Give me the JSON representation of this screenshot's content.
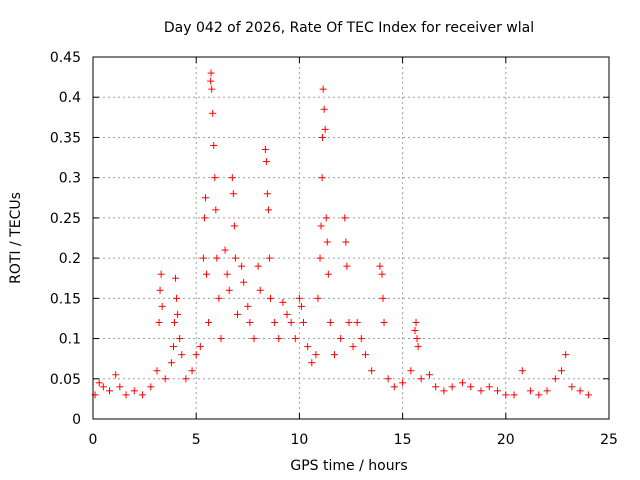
{
  "chart_data": {
    "type": "scatter",
    "title": "Day 042 of 2026, Rate Of TEC Index for receiver wlal",
    "xlabel": "GPS time / hours",
    "ylabel": "ROTI / TECUs",
    "xlim": [
      0,
      25
    ],
    "ylim": [
      0,
      0.45
    ],
    "x_ticks": [
      "0",
      "5",
      "10",
      "15",
      "20",
      "25"
    ],
    "y_ticks": [
      "0",
      "0.05",
      "0.1",
      "0.15",
      "0.2",
      "0.25",
      "0.3",
      "0.35",
      "0.4",
      "0.45"
    ],
    "grid": true,
    "marker": "+",
    "color": "#ff0000",
    "series": [
      {
        "points": [
          [
            0.1,
            0.03
          ],
          [
            0.3,
            0.045
          ],
          [
            0.5,
            0.04
          ],
          [
            0.8,
            0.035
          ],
          [
            1.1,
            0.055
          ],
          [
            1.3,
            0.04
          ],
          [
            1.6,
            0.03
          ],
          [
            2.0,
            0.035
          ],
          [
            2.4,
            0.03
          ],
          [
            2.8,
            0.04
          ],
          [
            3.1,
            0.06
          ],
          [
            3.2,
            0.12
          ],
          [
            3.25,
            0.16
          ],
          [
            3.3,
            0.18
          ],
          [
            3.35,
            0.14
          ],
          [
            3.5,
            0.05
          ],
          [
            3.8,
            0.07
          ],
          [
            3.9,
            0.09
          ],
          [
            3.95,
            0.12
          ],
          [
            4.0,
            0.175
          ],
          [
            4.05,
            0.15
          ],
          [
            4.1,
            0.13
          ],
          [
            4.2,
            0.1
          ],
          [
            4.3,
            0.08
          ],
          [
            4.5,
            0.05
          ],
          [
            4.8,
            0.06
          ],
          [
            5.0,
            0.08
          ],
          [
            5.2,
            0.09
          ],
          [
            5.35,
            0.2
          ],
          [
            5.4,
            0.25
          ],
          [
            5.45,
            0.275
          ],
          [
            5.5,
            0.18
          ],
          [
            5.6,
            0.12
          ],
          [
            5.7,
            0.42
          ],
          [
            5.72,
            0.43
          ],
          [
            5.75,
            0.41
          ],
          [
            5.8,
            0.38
          ],
          [
            5.85,
            0.34
          ],
          [
            5.9,
            0.3
          ],
          [
            5.95,
            0.26
          ],
          [
            6.0,
            0.2
          ],
          [
            6.1,
            0.15
          ],
          [
            6.2,
            0.1
          ],
          [
            6.4,
            0.21
          ],
          [
            6.5,
            0.18
          ],
          [
            6.6,
            0.16
          ],
          [
            6.75,
            0.3
          ],
          [
            6.8,
            0.28
          ],
          [
            6.85,
            0.24
          ],
          [
            6.9,
            0.2
          ],
          [
            7.0,
            0.13
          ],
          [
            7.2,
            0.19
          ],
          [
            7.3,
            0.17
          ],
          [
            7.5,
            0.14
          ],
          [
            7.6,
            0.12
          ],
          [
            7.8,
            0.1
          ],
          [
            8.0,
            0.19
          ],
          [
            8.1,
            0.16
          ],
          [
            8.35,
            0.335
          ],
          [
            8.4,
            0.32
          ],
          [
            8.45,
            0.28
          ],
          [
            8.5,
            0.26
          ],
          [
            8.55,
            0.2
          ],
          [
            8.6,
            0.15
          ],
          [
            8.8,
            0.12
          ],
          [
            9.0,
            0.1
          ],
          [
            9.2,
            0.145
          ],
          [
            9.4,
            0.13
          ],
          [
            9.6,
            0.12
          ],
          [
            9.8,
            0.1
          ],
          [
            10.0,
            0.15
          ],
          [
            10.1,
            0.14
          ],
          [
            10.2,
            0.12
          ],
          [
            10.4,
            0.09
          ],
          [
            10.6,
            0.07
          ],
          [
            10.8,
            0.08
          ],
          [
            10.9,
            0.15
          ],
          [
            11.0,
            0.2
          ],
          [
            11.05,
            0.24
          ],
          [
            11.1,
            0.3
          ],
          [
            11.12,
            0.35
          ],
          [
            11.15,
            0.41
          ],
          [
            11.2,
            0.385
          ],
          [
            11.25,
            0.36
          ],
          [
            11.3,
            0.25
          ],
          [
            11.35,
            0.22
          ],
          [
            11.4,
            0.18
          ],
          [
            11.5,
            0.12
          ],
          [
            11.7,
            0.08
          ],
          [
            12.0,
            0.1
          ],
          [
            12.2,
            0.25
          ],
          [
            12.25,
            0.22
          ],
          [
            12.3,
            0.19
          ],
          [
            12.4,
            0.12
          ],
          [
            12.6,
            0.09
          ],
          [
            12.8,
            0.12
          ],
          [
            13.0,
            0.1
          ],
          [
            13.2,
            0.08
          ],
          [
            13.5,
            0.06
          ],
          [
            13.9,
            0.19
          ],
          [
            14.0,
            0.18
          ],
          [
            14.05,
            0.15
          ],
          [
            14.1,
            0.12
          ],
          [
            14.3,
            0.05
          ],
          [
            14.6,
            0.04
          ],
          [
            15.0,
            0.045
          ],
          [
            15.4,
            0.06
          ],
          [
            15.6,
            0.11
          ],
          [
            15.65,
            0.12
          ],
          [
            15.7,
            0.1
          ],
          [
            15.75,
            0.09
          ],
          [
            15.9,
            0.05
          ],
          [
            16.3,
            0.055
          ],
          [
            16.6,
            0.04
          ],
          [
            17.0,
            0.035
          ],
          [
            17.4,
            0.04
          ],
          [
            17.9,
            0.045
          ],
          [
            18.3,
            0.04
          ],
          [
            18.8,
            0.035
          ],
          [
            19.2,
            0.04
          ],
          [
            19.6,
            0.035
          ],
          [
            20.0,
            0.03
          ],
          [
            20.4,
            0.03
          ],
          [
            20.8,
            0.06
          ],
          [
            21.2,
            0.035
          ],
          [
            21.6,
            0.03
          ],
          [
            22.0,
            0.035
          ],
          [
            22.4,
            0.05
          ],
          [
            22.7,
            0.06
          ],
          [
            22.9,
            0.08
          ],
          [
            23.2,
            0.04
          ],
          [
            23.6,
            0.035
          ],
          [
            24.0,
            0.03
          ]
        ]
      }
    ]
  }
}
